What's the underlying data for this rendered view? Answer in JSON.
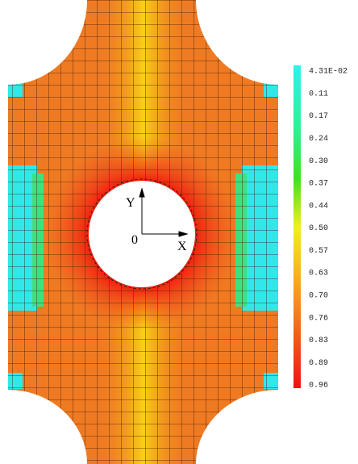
{
  "plot": {
    "axis_labels": {
      "y": "Y",
      "origin": "0",
      "x": "X"
    },
    "legend": {
      "labels": [
        "4.31E-02",
        "0.11",
        "0.17",
        "0.24",
        "0.30",
        "0.37",
        "0.44",
        "0.50",
        "0.57",
        "0.63",
        "0.70",
        "0.76",
        "0.83",
        "0.89",
        "0.96"
      ]
    }
  }
}
